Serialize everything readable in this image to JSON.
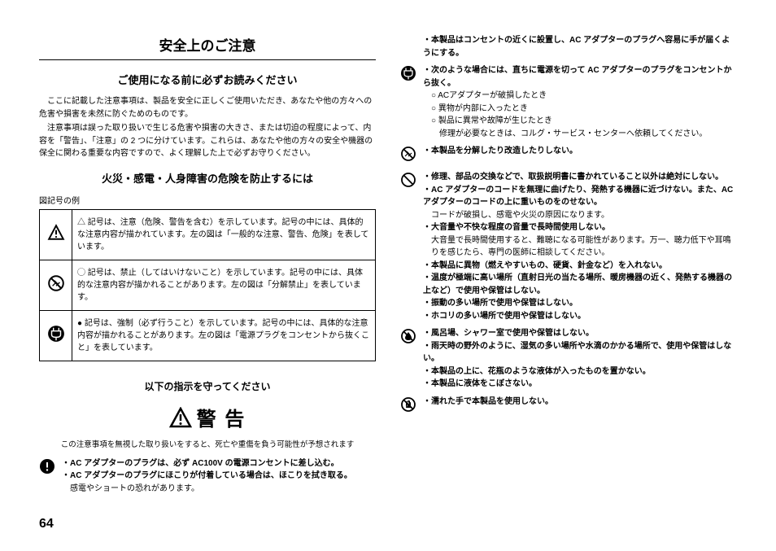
{
  "pageNumber": "64",
  "left": {
    "mainTitle": "安全上のご注意",
    "subTitle1": "ご使用になる前に必ずお読みください",
    "para1a": "ここに記載した注意事項は、製品を安全に正しくご使用いただき、あなたや他の方々への危害や損害を未然に防ぐためのものです。",
    "para1b": "注意事項は誤った取り扱いで生じる危害や損害の大きさ、または切迫の程度によって、内容を「警告」、「注意」の 2 つに分けています。これらは、あなたや他の方々の安全や機器の保全に関わる重要な内容ですので、よく理解した上で必ずお守りください。",
    "subTitle2": "火災・感電・人身障害の危険を防止するには",
    "symbolsLabel": "図記号の例",
    "symbolRows": [
      {
        "icon": "warning-tri",
        "text": "△ 記号は、注意（危険、警告を含む）を示しています。記号の中には、具体的な注意内容が描かれています。左の図は「一般的な注意、警告、危険」を表しています。"
      },
      {
        "icon": "prohibit-dis",
        "text": "◯ 記号は、禁止（してはいけないこと）を示しています。記号の中には、具体的な注意内容が描かれることがあります。左の図は「分解禁止」を表しています。"
      },
      {
        "icon": "plug",
        "text": "● 記号は、強制（必ず行うこと）を示しています。記号の中には、具体的な注意内容が描かれることがあります。左の図は「電源プラグをコンセントから抜くこと」を表しています。"
      }
    ],
    "instrTitle": "以下の指示を守ってください",
    "bigWarn": "警 告",
    "bigWarnCaption": "この注意事項を無視した取り扱いをすると、死亡や重傷を負う可能性が予想されます",
    "warnBlock1": {
      "icon": "filled-bang",
      "lines": [
        {
          "style": "bold",
          "text": "・AC アダプターのプラグは、必ず AC100V の電源コンセントに差し込む。"
        },
        {
          "style": "bold",
          "text": "・AC アダプターのプラグにほこりが付着している場合は、ほこりを拭き取る。"
        },
        {
          "style": "plain indent",
          "text": "感電やショートの恐れがあります。"
        }
      ]
    }
  },
  "right": {
    "blocks": [
      {
        "icon": "none",
        "lines": [
          {
            "style": "bold",
            "text": "・本製品はコンセントの近くに設置し、AC アダプターのプラグへ容易に手が届くようにする。"
          }
        ]
      },
      {
        "icon": "plug",
        "lines": [
          {
            "style": "bold",
            "text": "・次のような場合には、直ちに電源を切って AC アダプターのプラグをコンセントから抜く。"
          },
          {
            "style": "plain indent-o",
            "text": "○ ACアダプターが破損したとき"
          },
          {
            "style": "plain indent-o",
            "text": "○ 異物が内部に入ったとき"
          },
          {
            "style": "plain indent-o",
            "text": "○ 製品に異常や故障が生じたとき"
          },
          {
            "style": "plain indent-o",
            "text": "　修理が必要なときは、コルグ・サービス・センターへ依頼してください。"
          }
        ]
      },
      {
        "icon": "prohibit-dis",
        "lines": [
          {
            "style": "bold",
            "text": "・本製品を分解したり改造したりしない。"
          }
        ]
      },
      {
        "icon": "prohibit",
        "lines": [
          {
            "style": "bold",
            "text": "・修理、部品の交換などで、取扱説明書に書かれていること以外は絶対にしない。"
          },
          {
            "style": "bold",
            "text": "・AC アダプターのコードを無理に曲げたり、発熱する機器に近づけない。また、AC アダプターのコードの上に重いものをのせない。"
          },
          {
            "style": "plain indent",
            "text": "コードが破損し、感電や火災の原因になります。"
          },
          {
            "style": "bold",
            "text": "・大音量や不快な程度の音量で長時間使用しない。"
          },
          {
            "style": "plain indent",
            "text": "大音量で長時間使用すると、難聴になる可能性があります。万一、聴力低下や耳鳴りを感じたら、専門の医師に相談してください。"
          },
          {
            "style": "bold",
            "text": "・本製品に異物（燃えやすいもの、硬貨、針金など）を入れない。"
          },
          {
            "style": "bold",
            "text": "・温度が極端に高い場所（直射日光の当たる場所、暖房機器の近く、発熱する機器の上など）で使用や保管はしない。"
          },
          {
            "style": "bold",
            "text": "・振動の多い場所で使用や保管はしない。"
          },
          {
            "style": "bold",
            "text": "・ホコリの多い場所で使用や保管はしない。"
          }
        ]
      },
      {
        "icon": "no-water",
        "lines": [
          {
            "style": "bold",
            "text": "・風呂場、シャワー室で使用や保管はしない。"
          },
          {
            "style": "bold",
            "text": "・雨天時の野外のように、湿気の多い場所や水滴のかかる場所で、使用や保管はしない。"
          },
          {
            "style": "bold",
            "text": "・本製品の上に、花瓶のような液体が入ったものを置かない。"
          },
          {
            "style": "bold",
            "text": "・本製品に液体をこぼさない。"
          }
        ]
      },
      {
        "icon": "wet-hand",
        "lines": [
          {
            "style": "bold",
            "text": "・濡れた手で本製品を使用しない。"
          }
        ]
      }
    ]
  }
}
